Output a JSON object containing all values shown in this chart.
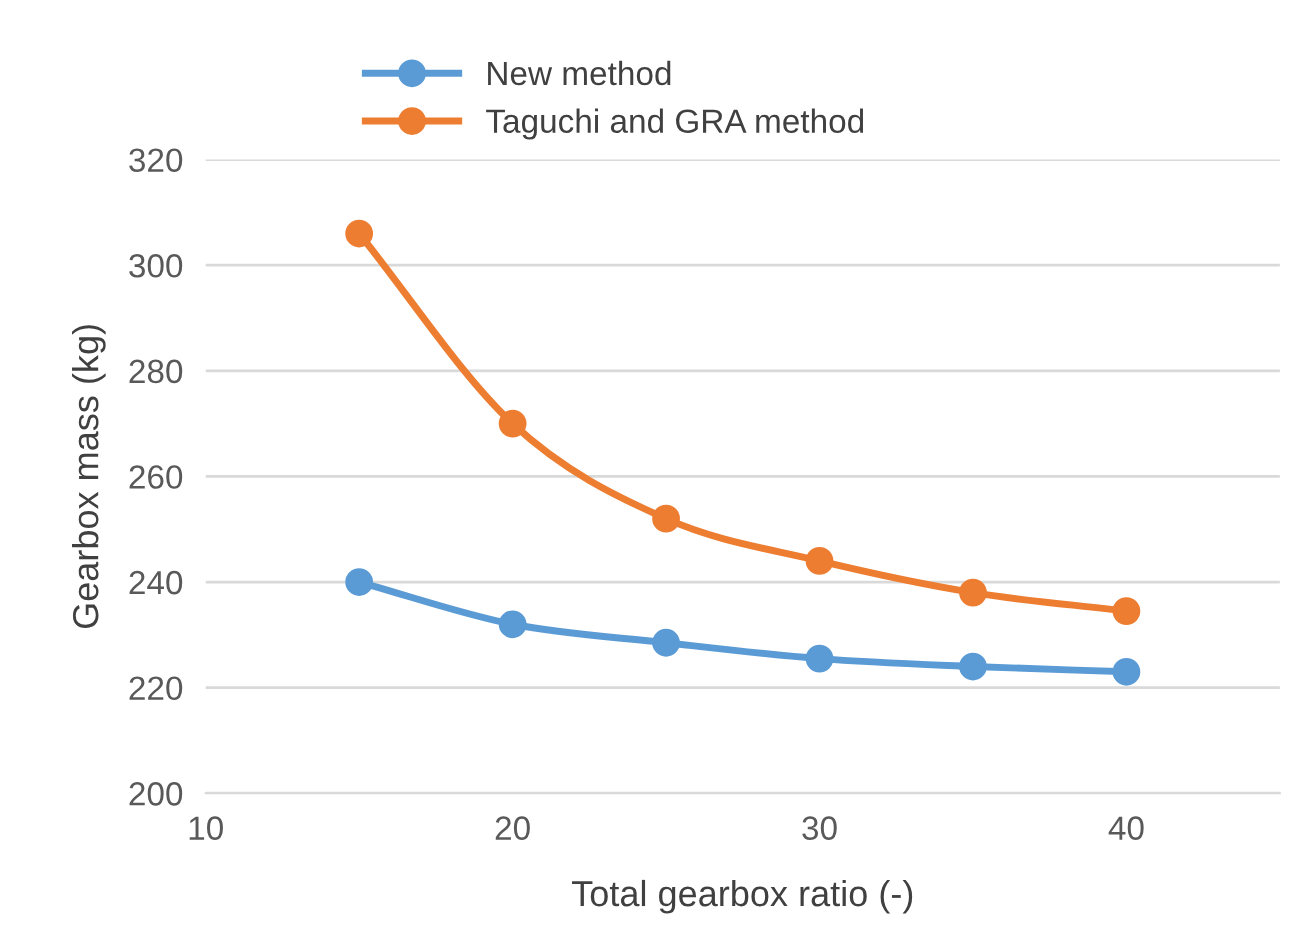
{
  "chart_data": {
    "type": "line",
    "xlabel": "Total gearbox ratio (-)",
    "ylabel": "Gearbox mass (kg)",
    "x": [
      15,
      20,
      25,
      30,
      35,
      40
    ],
    "series": [
      {
        "name": "New method",
        "color": "#5b9bd5",
        "values": [
          240,
          232,
          228.5,
          225.5,
          224,
          223
        ]
      },
      {
        "name": "Taguchi and GRA method",
        "color": "#ed7d31",
        "values": [
          306,
          270,
          252,
          244,
          238,
          234.5
        ]
      }
    ],
    "xlim": [
      10,
      45
    ],
    "xticks": [
      10,
      20,
      30,
      40
    ],
    "ylim": [
      200,
      320
    ],
    "yticks": [
      200,
      220,
      240,
      260,
      280,
      300,
      320
    ],
    "grid": "y",
    "legend": "top",
    "marker": "circle",
    "line_style": "solid"
  }
}
